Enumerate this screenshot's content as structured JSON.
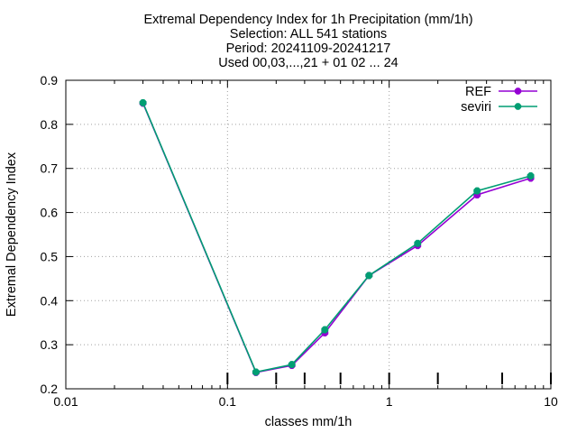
{
  "chart_data": {
    "type": "line",
    "title_lines": [
      "Extremal Dependency Index  for 1h Precipitation (mm/1h)",
      "Selection: ALL    541 stations",
      "Period: 20241109-20241217",
      "Used 00,03,...,21 + 01 02 ... 24"
    ],
    "xlabel": "classes mm/1h",
    "ylabel": "Extremal Dependency Index",
    "x_scale": "log",
    "xlim": [
      0.01,
      10
    ],
    "ylim": [
      0.2,
      0.9
    ],
    "x_ticks": [
      0.01,
      0.1,
      1,
      10
    ],
    "x_tick_labels": [
      "0.01",
      "0.1",
      "1",
      "10"
    ],
    "y_ticks": [
      0.2,
      0.3,
      0.4,
      0.5,
      0.6,
      0.7,
      0.8,
      0.9
    ],
    "y_tick_labels": [
      "0.2",
      "0.3",
      "0.4",
      "0.5",
      "0.6",
      "0.7",
      "0.8",
      "0.9"
    ],
    "grid": true,
    "legend_position": "top-right",
    "class_markers": [
      0.1,
      0.2,
      0.3,
      0.5,
      1,
      2,
      5,
      10
    ],
    "series": [
      {
        "name": "REF",
        "color": "#9400d3",
        "x": [
          0.03,
          0.15,
          0.25,
          0.4,
          0.75,
          1.5,
          3.5,
          7.5
        ],
        "y": [
          0.848,
          0.237,
          0.253,
          0.327,
          0.457,
          0.525,
          0.64,
          0.678
        ]
      },
      {
        "name": "seviri",
        "color": "#009e73",
        "x": [
          0.03,
          0.15,
          0.25,
          0.4,
          0.75,
          1.5,
          3.5,
          7.5
        ],
        "y": [
          0.849,
          0.238,
          0.255,
          0.334,
          0.457,
          0.53,
          0.649,
          0.683
        ]
      }
    ]
  }
}
